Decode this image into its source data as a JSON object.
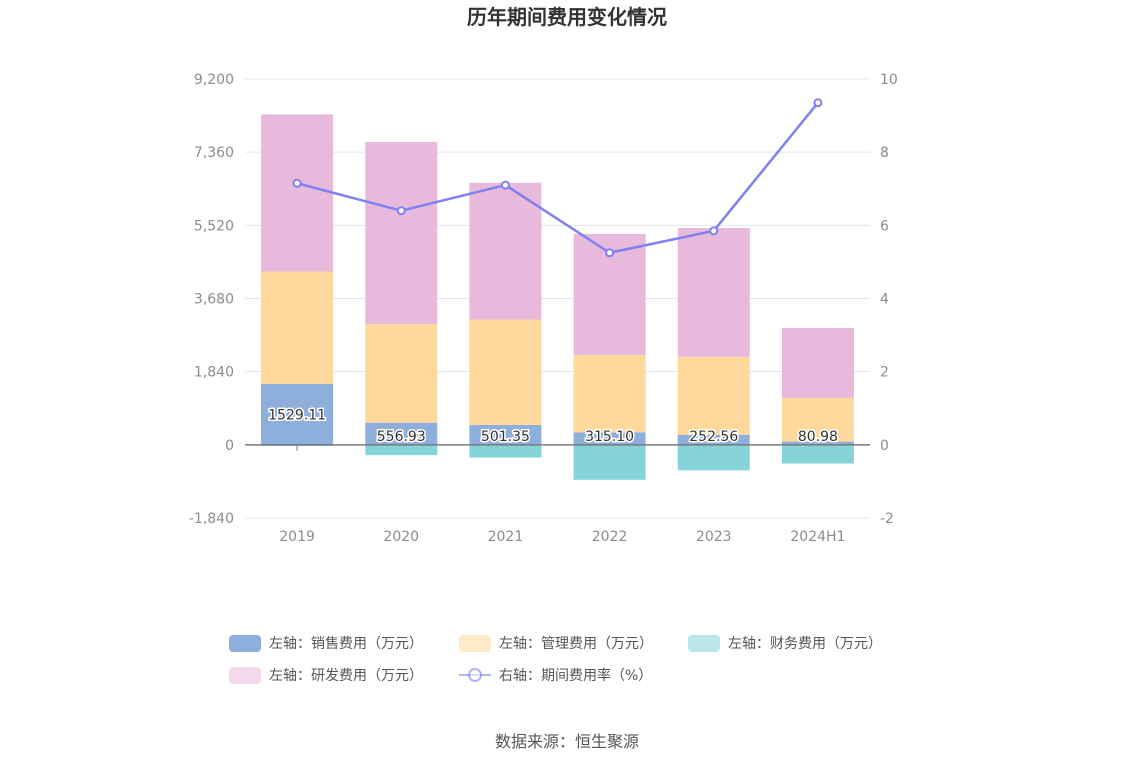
{
  "chart_data": {
    "type": "bar",
    "title": "历年期间费用变化情况",
    "source": "数据来源：恒生聚源",
    "categories": [
      "2019",
      "2020",
      "2021",
      "2022",
      "2023",
      "2024H1"
    ],
    "left_axis": {
      "ylim": [
        -1840,
        9200
      ],
      "ticks": [
        -1840,
        0,
        1840,
        3680,
        5520,
        7360,
        9200
      ],
      "tick_labels": [
        "-1,840",
        "0",
        "1,840",
        "3,680",
        "5,520",
        "7,360",
        "9,200"
      ]
    },
    "right_axis": {
      "ylim": [
        -2,
        10
      ],
      "ticks": [
        -2,
        0,
        2,
        4,
        6,
        8,
        10
      ],
      "tick_labels": [
        "-2",
        "0",
        "2",
        "4",
        "6",
        "8",
        "10"
      ]
    },
    "series": [
      {
        "name": "左轴：销售费用（万元）",
        "type": "bar",
        "color": "#8eaedc",
        "values": [
          1529.11,
          556.93,
          501.35,
          315.1,
          252.56,
          80.98
        ],
        "labels": [
          "1529.11",
          "556.93",
          "501.35",
          "315.10",
          "252.56",
          "80.98"
        ]
      },
      {
        "name": "左轴：管理费用（万元）",
        "type": "bar",
        "color": "#ffd89c",
        "values": [
          2830,
          2480,
          2650,
          1940,
          1960,
          1100
        ]
      },
      {
        "name": "左轴：财务费用（万元）",
        "type": "bar",
        "color": "#85d4d8",
        "values": [
          -30,
          -260,
          -320,
          -880,
          -640,
          -470
        ]
      },
      {
        "name": "左轴：研发费用（万元）",
        "type": "bar",
        "color": "#e7b9dc",
        "values": [
          3950,
          4580,
          3440,
          3050,
          3240,
          1760
        ]
      },
      {
        "name": "右轴：期间费用率（%）",
        "type": "line",
        "axis": "right",
        "color": "#8080f0",
        "values": [
          7.15,
          6.4,
          7.1,
          5.25,
          5.85,
          9.35
        ]
      }
    ],
    "legend_placement": "bottom",
    "grid": true
  }
}
